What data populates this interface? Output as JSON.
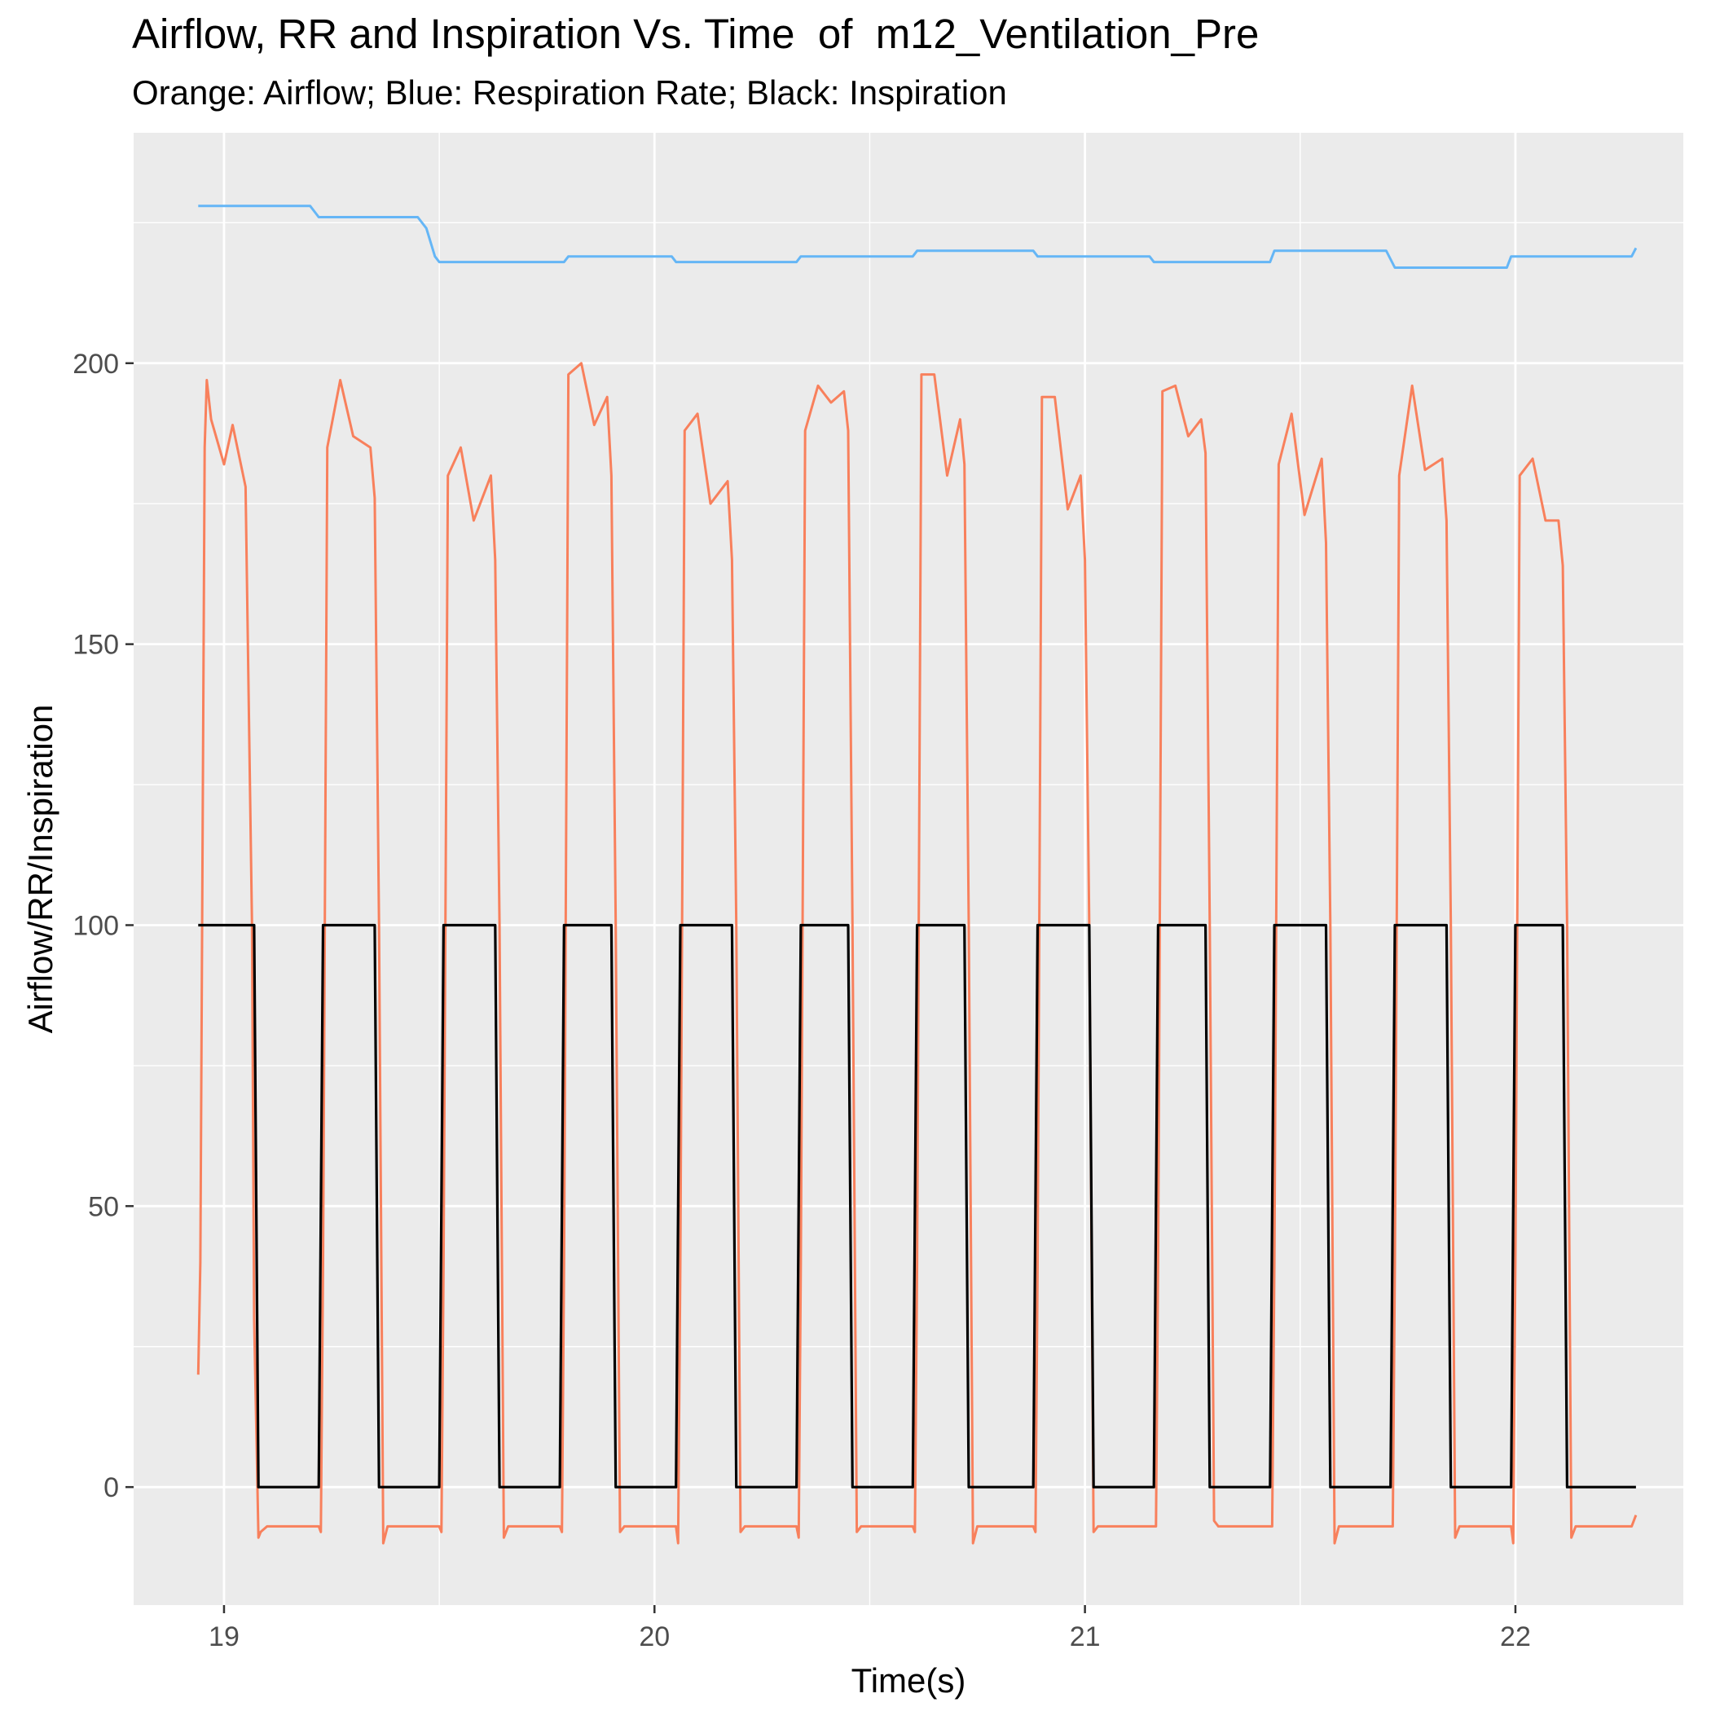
{
  "title": "Airflow, RR and Inspiration Vs. Time  of  m12_Ventilation_Pre",
  "subtitle": "Orange: Airflow; Blue: Respiration Rate; Black: Inspiration",
  "colors": {
    "panel": "#ebebeb",
    "grid": "#ffffff",
    "airflow": "#f8805c",
    "rr": "#65b6f6",
    "inspiration": "#000000"
  },
  "chart_data": {
    "type": "line",
    "title": "Airflow, RR and Inspiration Vs. Time  of  m12_Ventilation_Pre",
    "subtitle": "Orange: Airflow; Blue: Respiration Rate; Black: Inspiration",
    "xlabel": "Time(s)",
    "ylabel": "Airflow/RR/Inspiration",
    "xlim": [
      18.79,
      22.39
    ],
    "ylim": [
      -21,
      241
    ],
    "x_ticks": [
      19,
      20,
      21,
      22
    ],
    "y_ticks": [
      0,
      50,
      100,
      150,
      200
    ],
    "grid": true,
    "breaths": [
      {
        "start": 18.94,
        "end": 19.07,
        "peaks": [
          197,
          182,
          189
        ]
      },
      {
        "start": 19.22,
        "end": 19.35,
        "peaks": [
          197,
          187,
          185
        ]
      },
      {
        "start": 19.5,
        "end": 19.63,
        "peaks": [
          185,
          172,
          180
        ]
      },
      {
        "start": 19.78,
        "end": 19.9,
        "peaks": [
          200,
          189,
          194
        ]
      },
      {
        "start": 20.05,
        "end": 20.18,
        "peaks": [
          191,
          175,
          179
        ]
      },
      {
        "start": 20.33,
        "end": 20.45,
        "peaks": [
          196,
          193,
          195
        ]
      },
      {
        "start": 20.6,
        "end": 20.72,
        "peaks": [
          198,
          180,
          190
        ]
      },
      {
        "start": 20.88,
        "end": 21.01,
        "peaks": [
          194,
          174,
          180
        ]
      },
      {
        "start": 21.16,
        "end": 21.28,
        "peaks": [
          196,
          187,
          190
        ]
      },
      {
        "start": 21.43,
        "end": 21.56,
        "peaks": [
          191,
          173,
          183
        ]
      },
      {
        "start": 21.71,
        "end": 21.84,
        "peaks": [
          196,
          181,
          183
        ]
      },
      {
        "start": 21.99,
        "end": 22.11,
        "peaks": [
          183,
          172,
          172
        ]
      }
    ],
    "series": [
      {
        "name": "Airflow",
        "color": "#f8805c",
        "x": [
          18.94,
          18.945,
          18.955,
          18.96,
          18.97,
          19.0,
          19.02,
          19.05,
          19.065,
          19.07,
          19.08,
          19.085,
          19.1,
          19.22,
          19.225,
          19.23,
          19.24,
          19.27,
          19.3,
          19.34,
          19.35,
          19.36,
          19.37,
          19.38,
          19.5,
          19.505,
          19.51,
          19.52,
          19.55,
          19.58,
          19.62,
          19.63,
          19.64,
          19.65,
          19.66,
          19.78,
          19.785,
          19.79,
          19.8,
          19.83,
          19.86,
          19.89,
          19.9,
          19.91,
          19.92,
          19.93,
          20.05,
          20.055,
          20.06,
          20.07,
          20.1,
          20.13,
          20.17,
          20.18,
          20.19,
          20.2,
          20.21,
          20.33,
          20.335,
          20.34,
          20.35,
          20.38,
          20.41,
          20.44,
          20.45,
          20.46,
          20.47,
          20.48,
          20.6,
          20.605,
          20.61,
          20.62,
          20.65,
          20.68,
          20.71,
          20.72,
          20.73,
          20.74,
          20.75,
          20.88,
          20.885,
          20.89,
          20.9,
          20.93,
          20.96,
          20.99,
          21.0,
          21.01,
          21.02,
          21.03,
          21.16,
          21.165,
          21.17,
          21.18,
          21.21,
          21.24,
          21.27,
          21.28,
          21.29,
          21.3,
          21.31,
          21.43,
          21.435,
          21.44,
          21.45,
          21.48,
          21.51,
          21.55,
          21.56,
          21.57,
          21.58,
          21.59,
          21.71,
          21.715,
          21.72,
          21.73,
          21.76,
          21.79,
          21.83,
          21.84,
          21.85,
          21.86,
          21.87,
          21.99,
          21.995,
          22.0,
          22.01,
          22.04,
          22.07,
          22.1,
          22.11,
          22.12,
          22.13,
          22.14,
          22.27,
          22.28
        ],
        "values": [
          20,
          40,
          185,
          197,
          190,
          182,
          189,
          178,
          100,
          30,
          -9,
          -8,
          -7,
          -7,
          -8,
          40,
          185,
          197,
          187,
          185,
          176,
          100,
          -10,
          -7,
          -7,
          -8,
          40,
          180,
          185,
          172,
          180,
          165,
          100,
          -9,
          -7,
          -7,
          -8,
          40,
          198,
          200,
          189,
          194,
          180,
          100,
          -8,
          -7,
          -7,
          -10,
          40,
          188,
          191,
          175,
          179,
          165,
          100,
          -8,
          -7,
          -7,
          -9,
          40,
          188,
          196,
          193,
          195,
          188,
          100,
          -8,
          -7,
          -7,
          -8,
          40,
          198,
          198,
          180,
          190,
          182,
          100,
          -10,
          -7,
          -7,
          -8,
          40,
          194,
          194,
          174,
          180,
          165,
          100,
          -8,
          -7,
          -7,
          -7,
          40,
          195,
          196,
          187,
          190,
          184,
          100,
          -6,
          -7,
          -7,
          -7,
          40,
          182,
          191,
          173,
          183,
          168,
          100,
          -10,
          -7,
          -7,
          -7,
          40,
          180,
          196,
          181,
          183,
          172,
          100,
          -9,
          -7,
          -7,
          -10,
          40,
          180,
          183,
          172,
          172,
          164,
          100,
          -9,
          -7,
          -7,
          -5
        ]
      },
      {
        "name": "Respiration Rate",
        "color": "#65b6f6",
        "x": [
          18.94,
          19.2,
          19.22,
          19.45,
          19.47,
          19.49,
          19.5,
          19.79,
          19.8,
          20.04,
          20.05,
          20.33,
          20.34,
          20.6,
          20.61,
          20.88,
          20.89,
          21.15,
          21.16,
          21.43,
          21.44,
          21.7,
          21.72,
          21.98,
          21.99,
          22.27,
          22.28
        ],
        "values": [
          228,
          228,
          226,
          226,
          224,
          219,
          218,
          218,
          219,
          219,
          218,
          218,
          219,
          219,
          220,
          220,
          219,
          219,
          218,
          218,
          220,
          220,
          217,
          217,
          219,
          219,
          220.5
        ]
      },
      {
        "name": "Inspiration",
        "color": "#000000",
        "x": [
          18.94,
          19.07,
          19.08,
          19.22,
          19.23,
          19.35,
          19.36,
          19.5,
          19.51,
          19.63,
          19.64,
          19.78,
          19.79,
          19.9,
          19.91,
          20.05,
          20.06,
          20.18,
          20.19,
          20.33,
          20.34,
          20.45,
          20.46,
          20.6,
          20.61,
          20.72,
          20.73,
          20.88,
          20.89,
          21.01,
          21.02,
          21.16,
          21.17,
          21.28,
          21.29,
          21.43,
          21.44,
          21.56,
          21.57,
          21.71,
          21.72,
          21.84,
          21.85,
          21.99,
          22.0,
          22.11,
          22.12,
          22.28
        ],
        "values": [
          100,
          100,
          0,
          0,
          100,
          100,
          0,
          0,
          100,
          100,
          0,
          0,
          100,
          100,
          0,
          0,
          100,
          100,
          0,
          0,
          100,
          100,
          0,
          0,
          100,
          100,
          0,
          0,
          100,
          100,
          0,
          0,
          100,
          100,
          0,
          0,
          100,
          100,
          0,
          0,
          100,
          100,
          0,
          0,
          100,
          100,
          0,
          0
        ]
      }
    ]
  }
}
